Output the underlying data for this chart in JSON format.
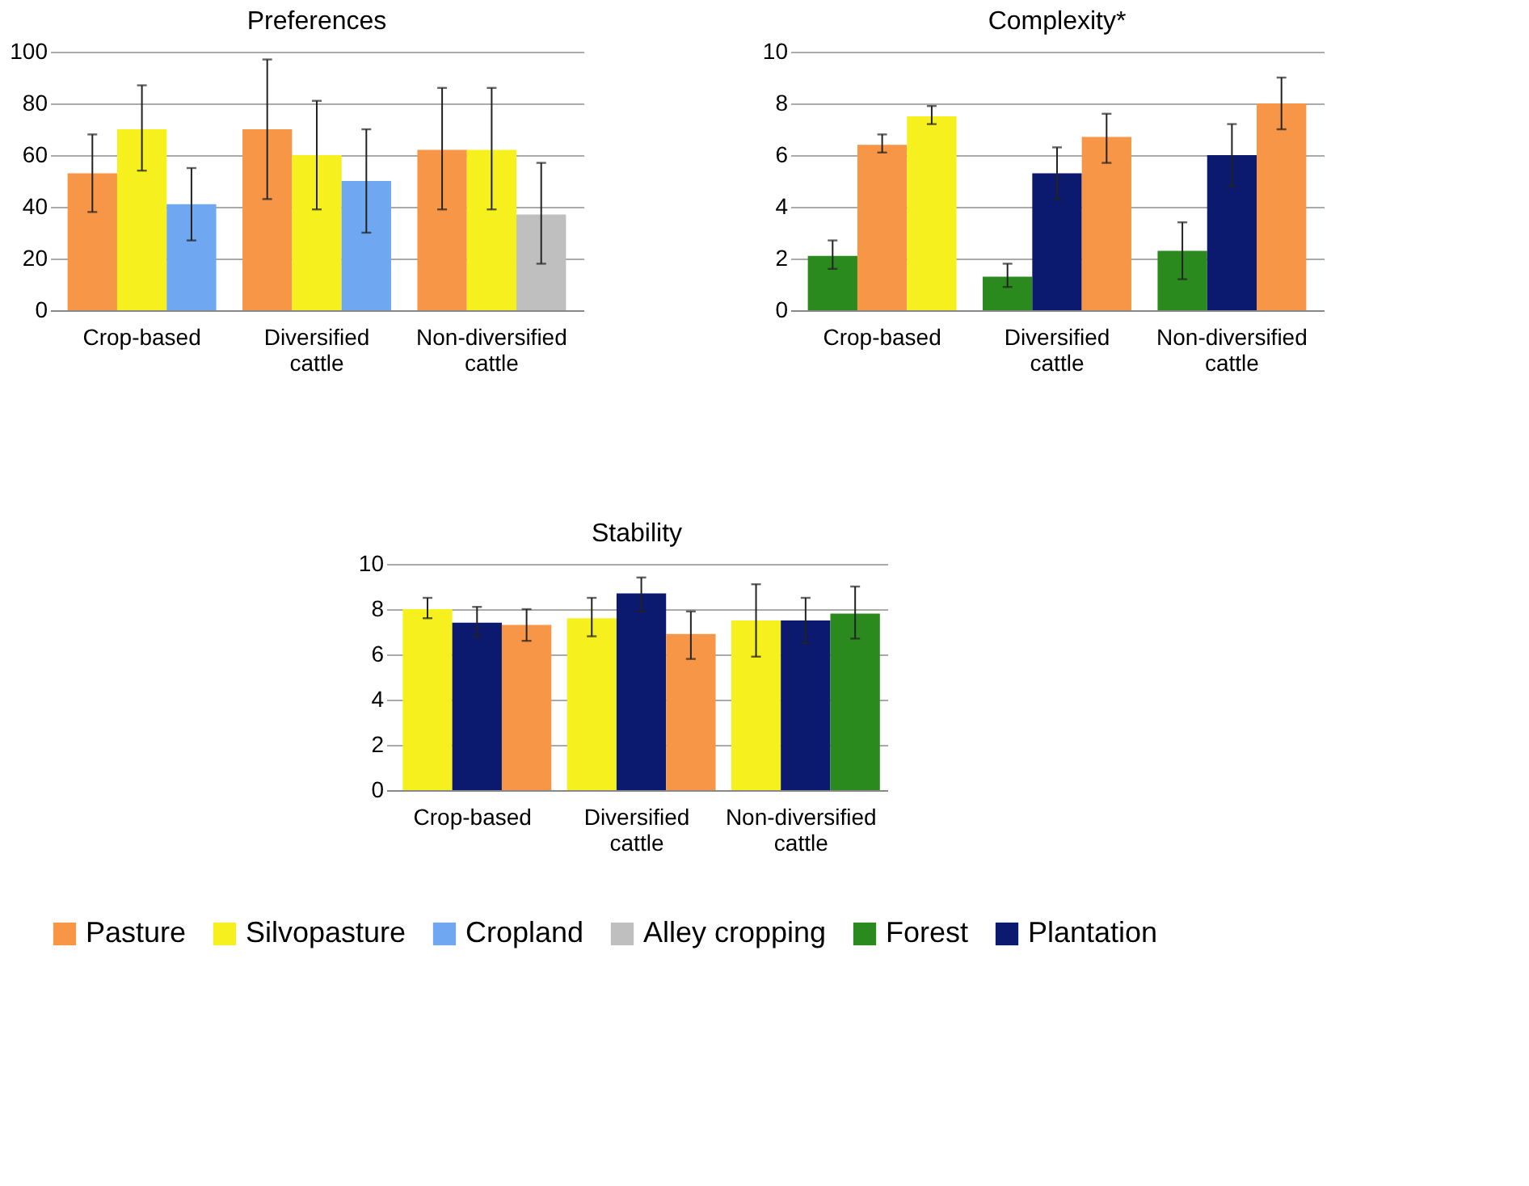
{
  "chart_data": [
    {
      "type": "bar",
      "title": "Preferences",
      "categories": [
        "Crop-based",
        "Diversified cattle",
        "Non-diversified cattle"
      ],
      "ylim": [
        0,
        100
      ],
      "yticks": [
        0,
        20,
        40,
        60,
        80,
        100
      ],
      "grid": "y",
      "legend": "bottom",
      "series": [
        {
          "name": "Pasture",
          "color": "#f79646",
          "values": [
            53,
            70,
            62
          ],
          "errors": [
            [
              38,
              68
            ],
            [
              43,
              97
            ],
            [
              39,
              86
            ]
          ]
        },
        {
          "name": "Silvopasture",
          "color": "#f5f01e",
          "values": [
            70,
            60,
            62
          ],
          "errors": [
            [
              54,
              87
            ],
            [
              39,
              81
            ],
            [
              39,
              86
            ]
          ]
        },
        {
          "name": "Cropland",
          "color": "#6fa8f0",
          "values": [
            41,
            50,
            null
          ],
          "errors": [
            [
              27,
              55
            ],
            [
              30,
              70
            ],
            null
          ]
        },
        {
          "name": "Alley cropping",
          "color": "#bfbfbf",
          "values": [
            null,
            null,
            37
          ],
          "errors": [
            null,
            null,
            [
              18,
              57
            ]
          ]
        }
      ]
    },
    {
      "type": "bar",
      "title": "Complexity*",
      "categories": [
        "Crop-based",
        "Diversified cattle",
        "Non-diversified cattle"
      ],
      "ylim": [
        0,
        10
      ],
      "yticks": [
        0,
        2,
        4,
        6,
        8,
        10
      ],
      "grid": "y",
      "legend": "bottom",
      "series": [
        {
          "name": "Forest",
          "color": "#2a8a1e",
          "values": [
            2.1,
            1.3,
            2.3
          ],
          "errors": [
            [
              1.6,
              2.7
            ],
            [
              0.9,
              1.8
            ],
            [
              1.2,
              3.4
            ]
          ]
        },
        {
          "name": "Plantation",
          "color": "#0b1a6e",
          "values": [
            null,
            5.3,
            6.0
          ],
          "errors": [
            null,
            [
              4.3,
              6.3
            ],
            [
              4.8,
              7.2
            ]
          ]
        },
        {
          "name": "Pasture",
          "color": "#f79646",
          "values": [
            6.4,
            6.7,
            8.0
          ],
          "errors": [
            [
              6.1,
              6.8
            ],
            [
              5.7,
              7.6
            ],
            [
              7.0,
              9.0
            ]
          ]
        },
        {
          "name": "Silvopasture",
          "color": "#f5f01e",
          "values": [
            7.5,
            null,
            null
          ],
          "errors": [
            [
              7.2,
              7.9
            ],
            null,
            null
          ]
        }
      ]
    },
    {
      "type": "bar",
      "title": "Stability",
      "categories": [
        "Crop-based",
        "Diversified cattle",
        "Non-diversified cattle"
      ],
      "ylim": [
        0,
        10
      ],
      "yticks": [
        0,
        2,
        4,
        6,
        8,
        10
      ],
      "grid": "y",
      "legend": "bottom",
      "series": [
        {
          "name": "Silvopasture",
          "color": "#f5f01e",
          "values": [
            8.0,
            7.6,
            7.5
          ],
          "errors": [
            [
              7.6,
              8.5
            ],
            [
              6.8,
              8.5
            ],
            [
              5.9,
              9.1
            ]
          ]
        },
        {
          "name": "Plantation",
          "color": "#0b1a6e",
          "values": [
            7.4,
            8.7,
            7.5
          ],
          "errors": [
            [
              6.8,
              8.1
            ],
            [
              7.9,
              9.4
            ],
            [
              6.5,
              8.5
            ]
          ]
        },
        {
          "name": "Pasture",
          "color": "#f79646",
          "values": [
            7.3,
            6.9,
            null
          ],
          "errors": [
            [
              6.6,
              8.0
            ],
            [
              5.8,
              7.9
            ],
            null
          ]
        },
        {
          "name": "Forest",
          "color": "#2a8a1e",
          "values": [
            null,
            null,
            7.8
          ],
          "errors": [
            null,
            null,
            [
              6.7,
              9.0
            ]
          ]
        }
      ]
    }
  ]
}
